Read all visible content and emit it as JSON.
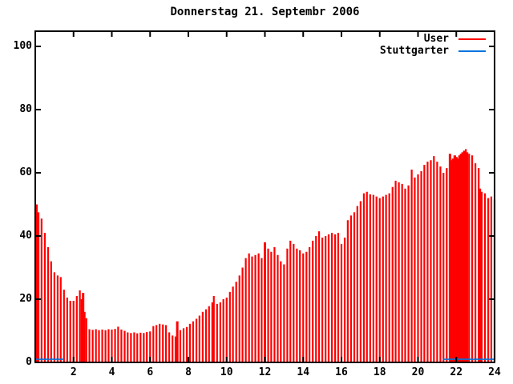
{
  "legend": {
    "position": "top-right",
    "items": [
      {
        "label": "User",
        "color": "#ff0000"
      },
      {
        "label": "Stuttgarter",
        "color": "#0073dd"
      }
    ]
  },
  "chart_data": {
    "type": "bar",
    "title": "Donnerstag 21. Septembr 2006",
    "xlabel": "",
    "ylabel": "",
    "xlim": [
      0,
      24
    ],
    "ylim": [
      0,
      105
    ],
    "x_ticks": [
      2,
      4,
      6,
      8,
      10,
      12,
      14,
      16,
      18,
      20,
      22,
      24
    ],
    "y_ticks": [
      0,
      20,
      40,
      60,
      80,
      100
    ],
    "grid": false,
    "legend_position": "top-right inside",
    "series": [
      {
        "name": "User",
        "color": "#ff0000",
        "style": "impulses",
        "highlight_x": [
          2.5,
          7.42,
          12,
          21.67
        ],
        "points": [
          [
            0,
            49
          ],
          [
            0.08,
            50
          ],
          [
            0.17,
            47.5
          ],
          [
            0.33,
            45.5
          ],
          [
            0.5,
            41
          ],
          [
            0.67,
            36.5
          ],
          [
            0.83,
            32
          ],
          [
            1,
            28.5
          ],
          [
            1.17,
            27.5
          ],
          [
            1.33,
            27
          ],
          [
            1.5,
            23
          ],
          [
            1.67,
            20.5
          ],
          [
            1.83,
            19.5
          ],
          [
            2,
            19.5
          ],
          [
            2.17,
            21
          ],
          [
            2.33,
            22.8
          ],
          [
            2.42,
            20
          ],
          [
            2.5,
            22
          ],
          [
            2.58,
            16
          ],
          [
            2.67,
            14
          ],
          [
            2.83,
            10.5
          ],
          [
            3,
            10.3
          ],
          [
            3.17,
            10.5
          ],
          [
            3.33,
            10.2
          ],
          [
            3.5,
            10.4
          ],
          [
            3.67,
            10.2
          ],
          [
            3.83,
            10.5
          ],
          [
            4,
            10.4
          ],
          [
            4.17,
            10.6
          ],
          [
            4.33,
            11.3
          ],
          [
            4.5,
            10.4
          ],
          [
            4.67,
            10
          ],
          [
            4.83,
            9.5
          ],
          [
            5,
            9.3
          ],
          [
            5.17,
            9.5
          ],
          [
            5.33,
            9.2
          ],
          [
            5.5,
            9.4
          ],
          [
            5.67,
            9.3
          ],
          [
            5.83,
            9.6
          ],
          [
            6,
            9.8
          ],
          [
            6.17,
            11.5
          ],
          [
            6.33,
            11.8
          ],
          [
            6.5,
            12.2
          ],
          [
            6.67,
            12
          ],
          [
            6.83,
            11.8
          ],
          [
            7,
            9.5
          ],
          [
            7.17,
            8.5
          ],
          [
            7.33,
            8.2
          ],
          [
            7.42,
            13
          ],
          [
            7.58,
            10.2
          ],
          [
            7.75,
            10.8
          ],
          [
            7.92,
            11.2
          ],
          [
            8.08,
            12.2
          ],
          [
            8.25,
            13
          ],
          [
            8.42,
            13.8
          ],
          [
            8.58,
            14.8
          ],
          [
            8.75,
            16
          ],
          [
            8.92,
            16.8
          ],
          [
            9.08,
            17.8
          ],
          [
            9.25,
            19
          ],
          [
            9.33,
            21
          ],
          [
            9.5,
            18.5
          ],
          [
            9.67,
            19
          ],
          [
            9.83,
            20
          ],
          [
            10,
            20.5
          ],
          [
            10.17,
            22.3
          ],
          [
            10.33,
            24
          ],
          [
            10.5,
            25.5
          ],
          [
            10.67,
            27.5
          ],
          [
            10.83,
            30
          ],
          [
            11,
            33
          ],
          [
            11.17,
            34.5
          ],
          [
            11.33,
            33.5
          ],
          [
            11.5,
            34
          ],
          [
            11.67,
            34.5
          ],
          [
            11.83,
            33
          ],
          [
            12,
            38
          ],
          [
            12.17,
            36
          ],
          [
            12.33,
            35
          ],
          [
            12.5,
            36.5
          ],
          [
            12.67,
            34
          ],
          [
            12.83,
            32
          ],
          [
            13,
            31
          ],
          [
            13.17,
            36
          ],
          [
            13.33,
            38.5
          ],
          [
            13.5,
            37.5
          ],
          [
            13.67,
            36
          ],
          [
            13.83,
            35.5
          ],
          [
            14,
            34.5
          ],
          [
            14.17,
            35
          ],
          [
            14.33,
            36.5
          ],
          [
            14.5,
            38.5
          ],
          [
            14.67,
            40
          ],
          [
            14.83,
            41.5
          ],
          [
            15,
            39.5
          ],
          [
            15.17,
            40
          ],
          [
            15.33,
            40.5
          ],
          [
            15.5,
            41
          ],
          [
            15.67,
            40.5
          ],
          [
            15.83,
            41
          ],
          [
            16,
            37.5
          ],
          [
            16.17,
            39.5
          ],
          [
            16.33,
            45
          ],
          [
            16.5,
            46.5
          ],
          [
            16.67,
            47.5
          ],
          [
            16.83,
            49.5
          ],
          [
            17,
            51
          ],
          [
            17.17,
            53.5
          ],
          [
            17.33,
            54
          ],
          [
            17.5,
            53.2
          ],
          [
            17.67,
            53
          ],
          [
            17.83,
            52.5
          ],
          [
            18,
            52
          ],
          [
            18.17,
            52.5
          ],
          [
            18.33,
            53
          ],
          [
            18.5,
            53.5
          ],
          [
            18.67,
            55.5
          ],
          [
            18.83,
            57.5
          ],
          [
            19,
            57
          ],
          [
            19.17,
            56.5
          ],
          [
            19.33,
            55
          ],
          [
            19.5,
            56
          ],
          [
            19.67,
            61
          ],
          [
            19.83,
            58.5
          ],
          [
            20,
            59.5
          ],
          [
            20.17,
            60.5
          ],
          [
            20.33,
            62.5
          ],
          [
            20.5,
            63.5
          ],
          [
            20.67,
            64
          ],
          [
            20.83,
            65.3
          ],
          [
            21,
            63.5
          ],
          [
            21.17,
            62
          ],
          [
            21.33,
            60
          ],
          [
            21.5,
            61.5
          ],
          [
            21.67,
            66
          ],
          [
            21.75,
            64
          ],
          [
            21.83,
            64.5
          ],
          [
            21.92,
            65.5
          ],
          [
            22,
            65
          ],
          [
            22.08,
            64.5
          ],
          [
            22.17,
            65.5
          ],
          [
            22.25,
            66
          ],
          [
            22.33,
            66.5
          ],
          [
            22.42,
            67
          ],
          [
            22.5,
            67.5
          ],
          [
            22.58,
            66.5
          ],
          [
            22.67,
            66
          ],
          [
            22.83,
            65.5
          ],
          [
            23,
            63
          ],
          [
            23.17,
            61.5
          ],
          [
            23.25,
            55
          ],
          [
            23.33,
            54
          ],
          [
            23.5,
            53.5
          ],
          [
            23.67,
            52
          ],
          [
            23.83,
            52.5
          ],
          [
            24,
            51.5
          ]
        ]
      },
      {
        "name": "Stuttgarter",
        "color": "#0073dd",
        "style": "line",
        "segments": [
          {
            "x0": 0,
            "x1": 1.5,
            "y": 1
          },
          {
            "x0": 21.3,
            "x1": 24,
            "y": 1
          }
        ]
      }
    ]
  }
}
